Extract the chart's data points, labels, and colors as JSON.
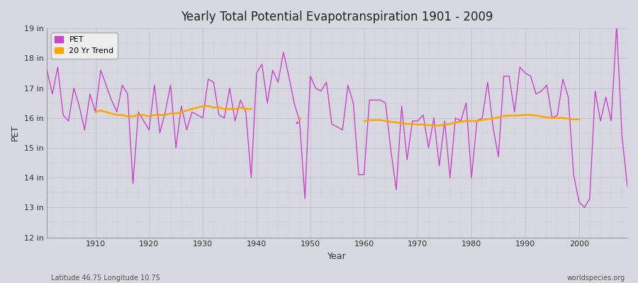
{
  "title": "Yearly Total Potential Evapotranspiration 1901 - 2009",
  "ylabel": "PET",
  "xlabel": "Year",
  "subtitle_left": "Latitude 46.75 Longitude 10.75",
  "subtitle_right": "worldspecies.org",
  "bg_color": "#d8d8e0",
  "plot_bg_color": "#d8d8e0",
  "line_color": "#cc44cc",
  "trend_color": "#ffa500",
  "ylim": [
    12,
    19
  ],
  "xlim": [
    1901,
    2009
  ],
  "yticks": [
    12,
    13,
    14,
    15,
    16,
    17,
    18,
    19
  ],
  "ytick_labels": [
    "12 in",
    "13 in",
    "14 in",
    "15 in",
    "16 in",
    "17 in",
    "18 in",
    "19 in"
  ],
  "xticks": [
    1910,
    1920,
    1930,
    1940,
    1950,
    1960,
    1970,
    1980,
    1990,
    2000
  ],
  "years": [
    1901,
    1902,
    1903,
    1904,
    1905,
    1906,
    1907,
    1908,
    1909,
    1910,
    1911,
    1912,
    1913,
    1914,
    1915,
    1916,
    1917,
    1918,
    1919,
    1920,
    1921,
    1922,
    1923,
    1924,
    1925,
    1926,
    1927,
    1928,
    1929,
    1930,
    1931,
    1932,
    1933,
    1934,
    1935,
    1936,
    1937,
    1938,
    1939,
    1940,
    1941,
    1942,
    1943,
    1944,
    1945,
    1946,
    1947,
    1948,
    1949,
    1950,
    1951,
    1952,
    1953,
    1954,
    1955,
    1956,
    1957,
    1958,
    1959,
    1960,
    1961,
    1962,
    1963,
    1964,
    1965,
    1966,
    1967,
    1968,
    1969,
    1970,
    1971,
    1972,
    1973,
    1974,
    1975,
    1976,
    1977,
    1978,
    1979,
    1980,
    1981,
    1982,
    1983,
    1984,
    1985,
    1986,
    1987,
    1988,
    1989,
    1990,
    1991,
    1992,
    1993,
    1994,
    1995,
    1996,
    1997,
    1998,
    1999,
    2000,
    2001,
    2002,
    2003,
    2004,
    2005,
    2006,
    2007,
    2008,
    2009
  ],
  "pet": [
    17.6,
    16.8,
    17.7,
    16.1,
    15.9,
    17.0,
    16.4,
    15.6,
    16.8,
    16.2,
    17.6,
    17.1,
    16.6,
    16.2,
    17.1,
    16.8,
    13.8,
    16.2,
    15.9,
    15.6,
    17.1,
    15.5,
    16.2,
    17.1,
    15.0,
    16.4,
    15.6,
    16.2,
    16.1,
    16.0,
    17.3,
    17.2,
    16.1,
    16.0,
    17.0,
    15.9,
    16.6,
    16.2,
    14.0,
    17.5,
    17.8,
    16.5,
    17.6,
    17.2,
    18.2,
    17.4,
    16.5,
    15.9,
    13.3,
    17.4,
    17.0,
    16.9,
    17.2,
    15.8,
    15.7,
    15.6,
    17.1,
    16.5,
    14.1,
    14.1,
    16.6,
    16.6,
    16.6,
    16.5,
    14.9,
    13.6,
    16.4,
    14.6,
    15.9,
    15.9,
    16.1,
    15.0,
    16.0,
    14.4,
    15.9,
    14.0,
    16.0,
    15.9,
    16.5,
    14.0,
    15.9,
    16.0,
    17.2,
    15.7,
    14.7,
    17.4,
    17.4,
    16.2,
    17.7,
    17.5,
    17.4,
    16.8,
    16.9,
    17.1,
    16.0,
    16.1,
    17.3,
    16.7,
    14.1,
    13.2,
    13.0,
    13.3,
    16.9,
    15.9,
    16.7,
    15.9,
    19.1,
    15.4,
    13.7
  ],
  "trend_segment1_years": [
    1910,
    1911,
    1912,
    1913,
    1914,
    1915,
    1916,
    1917,
    1918,
    1919,
    1920,
    1921,
    1922,
    1923,
    1924,
    1925,
    1926,
    1927,
    1928,
    1929,
    1930,
    1931,
    1932,
    1933,
    1934,
    1935,
    1936,
    1937,
    1938,
    1939
  ],
  "trend_segment1": [
    16.2,
    16.25,
    16.2,
    16.15,
    16.1,
    16.1,
    16.05,
    16.05,
    16.1,
    16.1,
    16.05,
    16.1,
    16.1,
    16.1,
    16.15,
    16.15,
    16.2,
    16.25,
    16.3,
    16.35,
    16.4,
    16.4,
    16.35,
    16.35,
    16.3,
    16.3,
    16.3,
    16.35,
    16.3,
    16.3
  ],
  "trend_segment2_years": [
    1960,
    1961,
    1962,
    1963,
    1964,
    1965,
    1966,
    1967,
    1968,
    1969,
    1970,
    1971,
    1972,
    1973,
    1974,
    1975,
    1976,
    1977,
    1978,
    1979,
    1980,
    1981,
    1982,
    1983,
    1984,
    1985,
    1986,
    1987,
    1988,
    1989,
    1990,
    1991,
    1992,
    1993,
    1994,
    1995,
    1996,
    1997,
    1998,
    1999,
    2000
  ],
  "trend_segment2": [
    15.9,
    15.92,
    15.93,
    15.93,
    15.9,
    15.87,
    15.85,
    15.83,
    15.8,
    15.8,
    15.78,
    15.78,
    15.76,
    15.75,
    15.75,
    15.78,
    15.8,
    15.85,
    15.87,
    15.9,
    15.9,
    15.9,
    15.93,
    15.97,
    15.98,
    16.02,
    16.07,
    16.08,
    16.08,
    16.09,
    16.1,
    16.1,
    16.08,
    16.05,
    16.02,
    16.0,
    16.0,
    16.0,
    15.98,
    15.95,
    15.95
  ],
  "dot1_year": 1947.5,
  "dot1_val": 15.85,
  "dot2_year": 1948,
  "dot2_val": 16.0,
  "grid_color": "#bbbbcc",
  "minor_grid_color": "#ccccdd"
}
